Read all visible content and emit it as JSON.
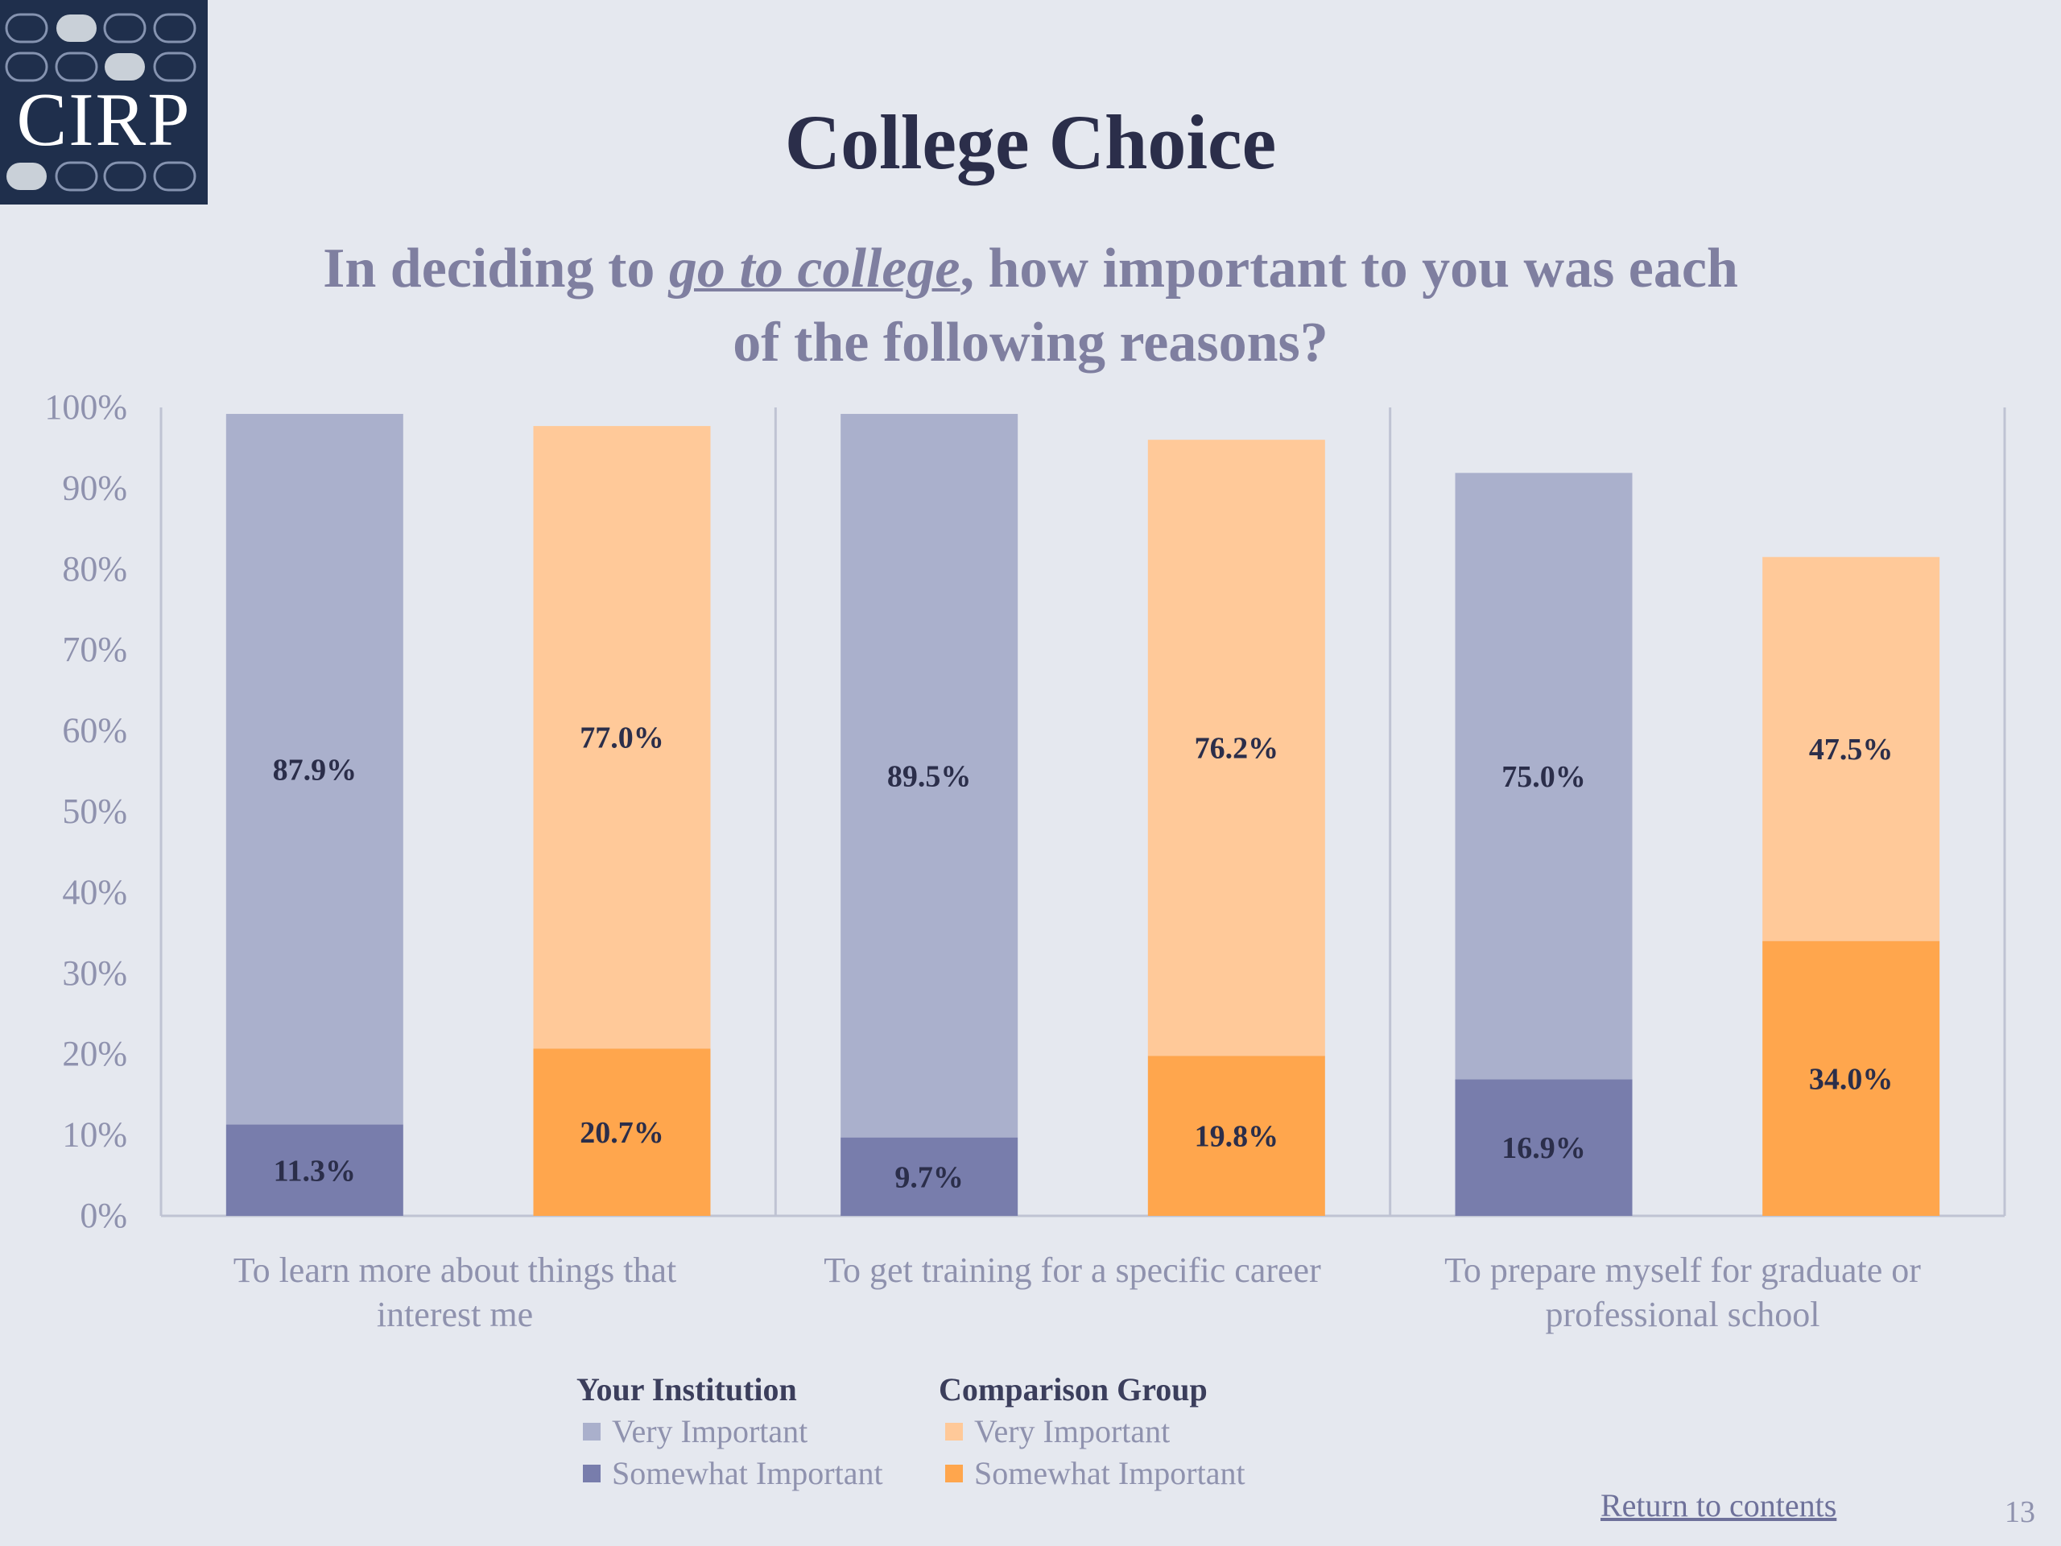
{
  "logo": {
    "text": "CIRP"
  },
  "title": "College Choice",
  "subtitle": {
    "prefix": "In deciding to ",
    "emphasis": "go to college",
    "suffix": ", how important to you was each of the following reasons?"
  },
  "colors": {
    "background": "#E5E8EF",
    "inst_very": "#AAB0CC",
    "inst_somewhat": "#787DAC",
    "comp_very": "#FFC999",
    "comp_somewhat": "#FFA64D",
    "axis": "#BFC3D3"
  },
  "chart_data": {
    "type": "bar",
    "stacked": true,
    "ylim": [
      0,
      100
    ],
    "y_ticks": [
      "0%",
      "10%",
      "20%",
      "30%",
      "40%",
      "50%",
      "60%",
      "70%",
      "80%",
      "90%",
      "100%"
    ],
    "categories": [
      "To learn more about things that interest me",
      "To get training for a specific career",
      "To prepare myself for graduate or professional school"
    ],
    "groups": [
      {
        "name": "Your Institution",
        "series": [
          {
            "name": "Somewhat Important",
            "values": [
              11.3,
              9.7,
              16.9
            ],
            "labels": [
              "11.3%",
              "9.7%",
              "16.9%"
            ]
          },
          {
            "name": "Very Important",
            "values": [
              87.9,
              89.5,
              75.0
            ],
            "labels": [
              "87.9%",
              "89.5%",
              "75.0%"
            ]
          }
        ]
      },
      {
        "name": "Comparison Group",
        "series": [
          {
            "name": "Somewhat Important",
            "values": [
              20.7,
              19.8,
              34.0
            ],
            "labels": [
              "20.7%",
              "19.8%",
              "34.0%"
            ]
          },
          {
            "name": "Very Important",
            "values": [
              77.0,
              76.2,
              47.5
            ],
            "labels": [
              "77.0%",
              "76.2%",
              "47.5%"
            ]
          }
        ]
      }
    ],
    "legend": {
      "position": "bottom",
      "groups": [
        {
          "title": "Your Institution",
          "items": [
            "Very Important",
            "Somewhat Important"
          ]
        },
        {
          "title": "Comparison Group",
          "items": [
            "Very Important",
            "Somewhat Important"
          ]
        }
      ]
    }
  },
  "footer": {
    "return_link": "Return to contents",
    "page_number": "13"
  }
}
